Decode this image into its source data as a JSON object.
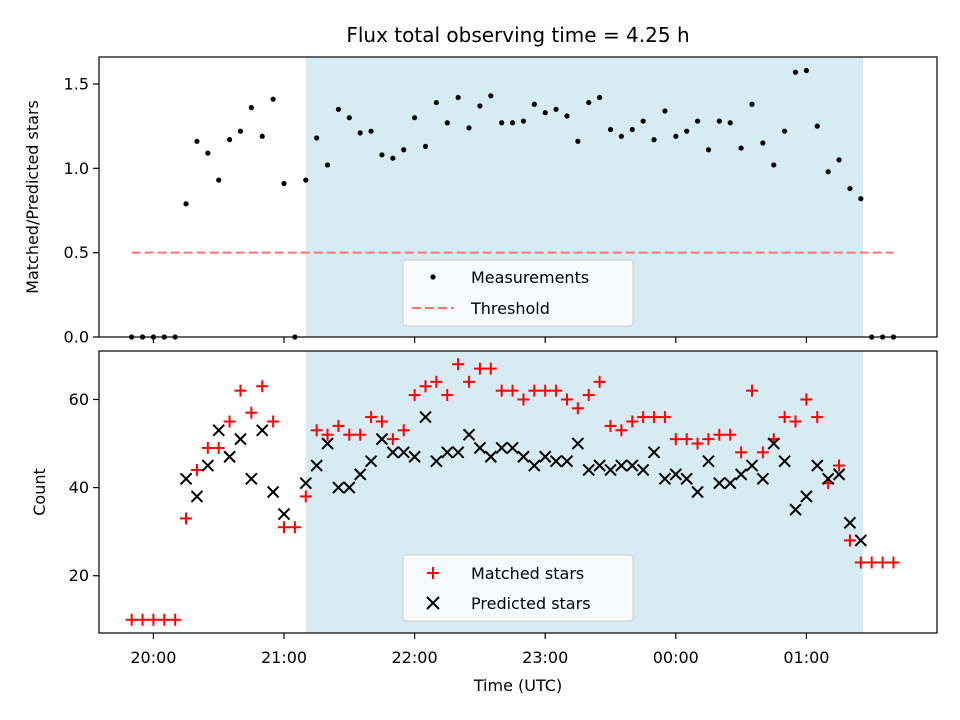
{
  "chart_data": [
    {
      "type": "scatter",
      "title": "Flux total observing time = 4.25 h",
      "ylabel": "Matched/Predicted stars",
      "xlabel": "",
      "xlim": [
        "19:35",
        "02:00"
      ],
      "ylim": [
        0,
        1.66
      ],
      "yticks": [
        "0.0",
        "0.5",
        "1.0",
        "1.5"
      ],
      "grid": false,
      "shaded_interval": [
        "21:10",
        "01:26"
      ],
      "shade_color": "#add8e6",
      "legend_position": "lower-center",
      "series": [
        {
          "name": "Measurements",
          "marker": "dot",
          "color": "#000000",
          "x": [
            "19:50",
            "19:55",
            "20:00",
            "20:05",
            "20:10",
            "20:15",
            "20:20",
            "20:25",
            "20:30",
            "20:35",
            "20:40",
            "20:45",
            "20:50",
            "20:55",
            "21:00",
            "21:05",
            "21:10",
            "21:15",
            "21:20",
            "21:25",
            "21:30",
            "21:35",
            "21:40",
            "21:45",
            "21:50",
            "21:55",
            "22:00",
            "22:05",
            "22:10",
            "22:15",
            "22:20",
            "22:25",
            "22:30",
            "22:35",
            "22:40",
            "22:45",
            "22:50",
            "22:55",
            "23:00",
            "23:05",
            "23:10",
            "23:15",
            "23:20",
            "23:25",
            "23:30",
            "23:35",
            "23:40",
            "23:45",
            "23:50",
            "23:55",
            "00:00",
            "00:05",
            "00:10",
            "00:15",
            "00:20",
            "00:25",
            "00:30",
            "00:35",
            "00:40",
            "00:45",
            "00:50",
            "00:55",
            "01:00",
            "01:05",
            "01:10",
            "01:15",
            "01:20",
            "01:25",
            "01:30",
            "01:35",
            "01:40"
          ],
          "y": [
            0,
            0,
            0,
            0,
            0,
            0.79,
            1.16,
            1.09,
            0.93,
            1.17,
            1.22,
            1.36,
            1.19,
            1.41,
            0.91,
            0,
            0.93,
            1.18,
            1.02,
            1.35,
            1.3,
            1.21,
            1.22,
            1.08,
            1.06,
            1.11,
            1.3,
            1.13,
            1.39,
            1.27,
            1.42,
            1.24,
            1.37,
            1.43,
            1.27,
            1.27,
            1.28,
            1.38,
            1.33,
            1.35,
            1.31,
            1.16,
            1.39,
            1.42,
            1.23,
            1.19,
            1.23,
            1.28,
            1.17,
            1.34,
            1.19,
            1.22,
            1.28,
            1.11,
            1.28,
            1.27,
            1.12,
            1.38,
            1.15,
            1.02,
            1.22,
            1.57,
            1.58,
            1.25,
            0.98,
            1.05,
            0.88,
            0.82,
            0,
            0,
            0
          ]
        },
        {
          "name": "Threshold",
          "style": "dashed",
          "color": "#ff7070",
          "x": [
            "19:50",
            "01:40"
          ],
          "y": [
            0.5,
            0.5
          ]
        }
      ]
    },
    {
      "type": "scatter",
      "title": "",
      "ylabel": "Count",
      "xlabel": "Time (UTC)",
      "xlim": [
        "19:35",
        "02:00"
      ],
      "ylim": [
        7,
        71
      ],
      "yticks": [
        "20",
        "40",
        "60"
      ],
      "xticks": [
        "20:00",
        "21:00",
        "22:00",
        "23:00",
        "00:00",
        "01:00"
      ],
      "grid": false,
      "shaded_interval": [
        "21:10",
        "01:26"
      ],
      "shade_color": "#add8e6",
      "legend_position": "lower-center",
      "series": [
        {
          "name": "Matched stars",
          "marker": "plus",
          "color": "#ff0000",
          "x": [
            "19:50",
            "19:55",
            "20:00",
            "20:05",
            "20:10",
            "20:15",
            "20:20",
            "20:25",
            "20:30",
            "20:35",
            "20:40",
            "20:45",
            "20:50",
            "20:55",
            "21:00",
            "21:05",
            "21:10",
            "21:15",
            "21:20",
            "21:25",
            "21:30",
            "21:35",
            "21:40",
            "21:45",
            "21:50",
            "21:55",
            "22:00",
            "22:05",
            "22:10",
            "22:15",
            "22:20",
            "22:25",
            "22:30",
            "22:35",
            "22:40",
            "22:45",
            "22:50",
            "22:55",
            "23:00",
            "23:05",
            "23:10",
            "23:15",
            "23:20",
            "23:25",
            "23:30",
            "23:35",
            "23:40",
            "23:45",
            "23:50",
            "23:55",
            "00:00",
            "00:05",
            "00:10",
            "00:15",
            "00:20",
            "00:25",
            "00:30",
            "00:35",
            "00:40",
            "00:45",
            "00:50",
            "00:55",
            "01:00",
            "01:05",
            "01:10",
            "01:15",
            "01:20",
            "01:25",
            "01:30",
            "01:35",
            "01:40"
          ],
          "y": [
            10,
            10,
            10,
            10,
            10,
            33,
            44,
            49,
            49,
            55,
            62,
            57,
            63,
            55,
            31,
            31,
            38,
            53,
            52,
            54,
            52,
            52,
            56,
            55,
            51,
            53,
            61,
            63,
            64,
            61,
            68,
            64,
            67,
            67,
            62,
            62,
            60,
            62,
            62,
            62,
            60,
            58,
            61,
            64,
            54,
            53,
            55,
            56,
            56,
            56,
            51,
            51,
            50,
            51,
            52,
            52,
            48,
            62,
            48,
            51,
            56,
            55,
            60,
            56,
            41,
            45,
            28,
            23,
            23,
            23,
            23
          ]
        },
        {
          "name": "Predicted stars",
          "marker": "x",
          "color": "#000000",
          "x": [
            "20:15",
            "20:20",
            "20:25",
            "20:30",
            "20:35",
            "20:40",
            "20:45",
            "20:50",
            "20:55",
            "21:00",
            "21:10",
            "21:15",
            "21:20",
            "21:25",
            "21:30",
            "21:35",
            "21:40",
            "21:45",
            "21:50",
            "21:55",
            "22:00",
            "22:05",
            "22:10",
            "22:15",
            "22:20",
            "22:25",
            "22:30",
            "22:35",
            "22:40",
            "22:45",
            "22:50",
            "22:55",
            "23:00",
            "23:05",
            "23:10",
            "23:15",
            "23:20",
            "23:25",
            "23:30",
            "23:35",
            "23:40",
            "23:45",
            "23:50",
            "23:55",
            "00:00",
            "00:05",
            "00:10",
            "00:15",
            "00:20",
            "00:25",
            "00:30",
            "00:35",
            "00:40",
            "00:45",
            "00:50",
            "00:55",
            "01:00",
            "01:05",
            "01:10",
            "01:15",
            "01:20",
            "01:25"
          ],
          "y": [
            42,
            38,
            45,
            53,
            47,
            51,
            42,
            53,
            39,
            34,
            41,
            45,
            50,
            40,
            40,
            43,
            46,
            51,
            48,
            48,
            47,
            56,
            46,
            48,
            48,
            52,
            49,
            47,
            49,
            49,
            47,
            45,
            47,
            46,
            46,
            50,
            44,
            45,
            44,
            45,
            45,
            44,
            48,
            42,
            43,
            42,
            39,
            46,
            41,
            41,
            43,
            45,
            42,
            50,
            46,
            35,
            38,
            45,
            42,
            43,
            32,
            28
          ]
        }
      ]
    }
  ]
}
